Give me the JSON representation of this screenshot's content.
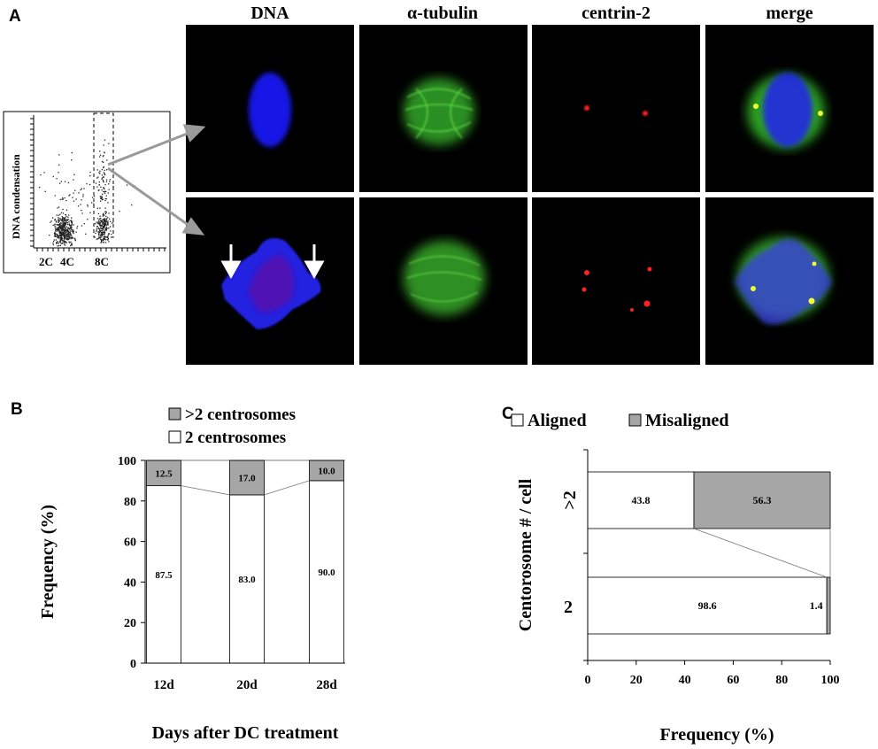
{
  "panel_a": {
    "letter": "A",
    "columns": [
      "DNA",
      "α-tubulin",
      "centrin-2",
      "merge"
    ],
    "flow_plot": {
      "ylabel": "DNA condensation",
      "x_ticks": [
        "2C",
        "4C",
        "8C"
      ]
    },
    "colors": {
      "dna": "#1a22ff",
      "tubulin": "#3fbf2a",
      "centrin": "#ff1a1a",
      "arrow": "#9a9a9a"
    }
  },
  "chart_data": [
    {
      "panel": "B",
      "type": "bar",
      "stacked": true,
      "categories": [
        "12d",
        "20d",
        "28d"
      ],
      "series": [
        {
          "name": "2 centrosomes",
          "values": [
            87.5,
            83.0,
            90.0
          ],
          "labels": [
            "87.5",
            "83.0",
            "90.0"
          ],
          "color": "#ffffff"
        },
        {
          "name": ">2 centrosomes",
          "values": [
            12.5,
            17.0,
            10.0
          ],
          "labels": [
            "12.5",
            "17.0",
            "10.0"
          ],
          "color": "#a6a6a6"
        }
      ],
      "xlabel": "Days after DC treatment",
      "ylabel": "Frequency (%)",
      "ylim": [
        0,
        100
      ],
      "yticks": [
        0,
        20,
        40,
        60,
        80,
        100
      ],
      "legend": "top",
      "grid": false
    },
    {
      "panel": "C",
      "type": "bar",
      "orientation": "horizontal",
      "stacked": true,
      "categories": [
        ">2",
        "2"
      ],
      "series": [
        {
          "name": "Aligned",
          "values": [
            43.8,
            98.6
          ],
          "labels": [
            "43.8",
            "98.6"
          ],
          "color": "#ffffff"
        },
        {
          "name": "Misaligned",
          "values": [
            56.3,
            1.4
          ],
          "labels": [
            "56.3",
            "1.4"
          ],
          "color": "#a6a6a6"
        }
      ],
      "xlabel": "Frequency (%)",
      "ylabel": "Centorosome # / cell",
      "xlim": [
        0,
        100
      ],
      "xticks": [
        0,
        20,
        40,
        60,
        80,
        100
      ],
      "legend": "top",
      "grid": false
    }
  ],
  "panel_letters": {
    "b": "B",
    "c": "C"
  }
}
